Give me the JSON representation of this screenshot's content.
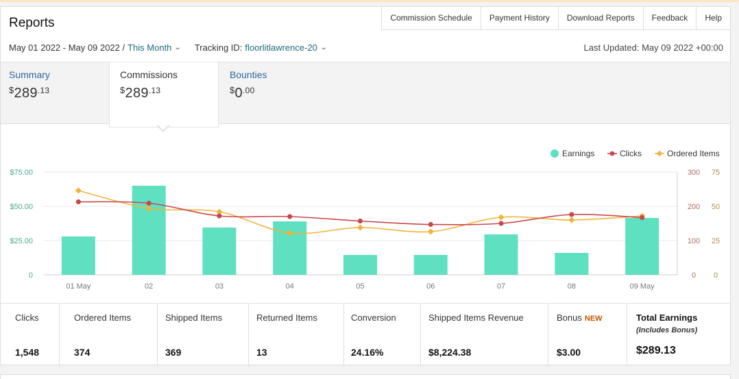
{
  "page": {
    "title": "Reports",
    "nav": [
      "Commission Schedule",
      "Payment History",
      "Download Reports",
      "Feedback",
      "Help"
    ],
    "date_range": "May 01 2022 - May 09 2022 /",
    "period_label": "This Month",
    "tracking_label": "Tracking ID:",
    "tracking_id": "floorlitlawrence-20",
    "last_updated": "Last Updated: May 09 2022 +00:00"
  },
  "tabs": {
    "summary": {
      "label": "Summary",
      "currency": "$",
      "whole": "289",
      "decimal": ".13"
    },
    "commissions": {
      "label": "Commissions",
      "currency": "$",
      "whole": "289",
      "decimal": ".13"
    },
    "bounties": {
      "label": "Bounties",
      "currency": "$",
      "whole": "0",
      "decimal": ".00"
    }
  },
  "chart_data": {
    "type": "bar",
    "categories": [
      "01 May",
      "02",
      "03",
      "04",
      "05",
      "06",
      "07",
      "08",
      "09 May"
    ],
    "series": [
      {
        "name": "Earnings",
        "kind": "bar",
        "axis": "left",
        "color": "#5fe0c0",
        "values": [
          28,
          65,
          34.5,
          39,
          14.5,
          14.5,
          29.5,
          16,
          41.5
        ]
      },
      {
        "name": "Clicks",
        "kind": "line",
        "axis": "right-clicks",
        "color": "#c8484a",
        "values": [
          213,
          209,
          172,
          170,
          157,
          147,
          150,
          176,
          167
        ]
      },
      {
        "name": "Ordered Items",
        "kind": "line",
        "axis": "right-items",
        "color": "#f0b33a",
        "values": [
          61.5,
          48.5,
          46,
          30.5,
          34.5,
          31.5,
          42,
          40,
          43
        ]
      }
    ],
    "y_left": {
      "min": 0,
      "max": 75,
      "ticks": [
        "0",
        "$25.00",
        "$50.00",
        "$75.00"
      ]
    },
    "y_right_clicks": {
      "min": 0,
      "max": 300,
      "ticks": [
        "0",
        "100",
        "200",
        "300"
      ]
    },
    "y_right_items": {
      "min": 0,
      "max": 75,
      "ticks": [
        "0",
        "25",
        "50",
        "75"
      ]
    },
    "legend_position": "top-right",
    "grid": true
  },
  "metrics": [
    {
      "label": "Clicks",
      "value": "1,548"
    },
    {
      "label": "Ordered Items",
      "value": "374"
    },
    {
      "label": "Shipped Items",
      "value": "369"
    },
    {
      "label": "Returned Items",
      "value": "13"
    },
    {
      "label": "Conversion",
      "value": "24.16%"
    },
    {
      "label": "Shipped Items Revenue",
      "value": "$8,224.38"
    },
    {
      "label": "Bonus",
      "badge": "NEW",
      "value": "$3.00"
    },
    {
      "label": "Total Earnings",
      "sub": "(Includes Bonus)",
      "value": "$289.13"
    }
  ],
  "colors": {
    "accent_link": "#2c6aa0",
    "teal_link": "#1a6a7e",
    "bar": "#5fe0c0",
    "clicks": "#c8484a",
    "items": "#f0b33a",
    "badge": "#c45500"
  }
}
